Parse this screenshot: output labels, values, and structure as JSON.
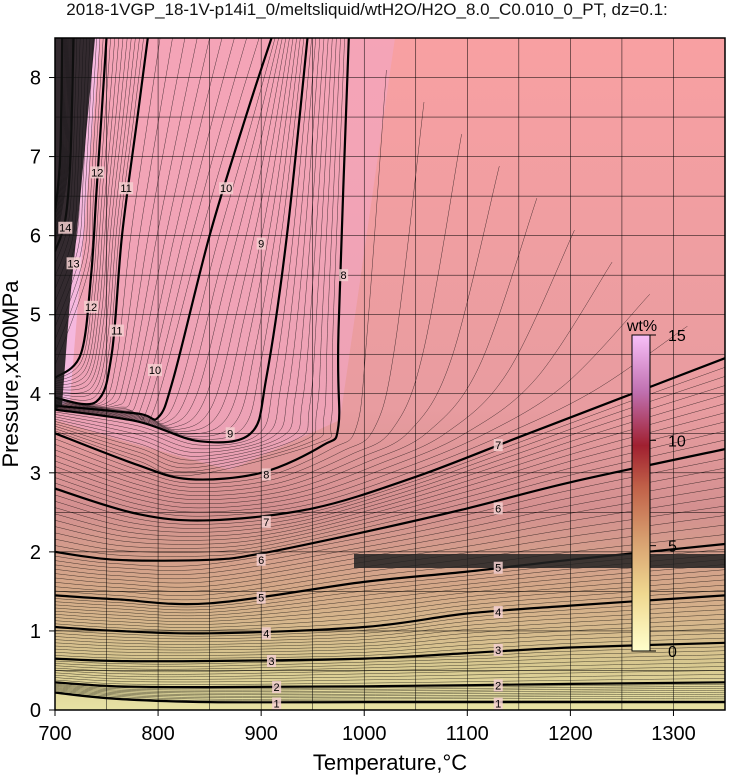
{
  "title": "2018-1VGP_18-1V-p14i1_0/meltsliquid/wtH2O/H2O_8.0_C0.010_0_PT, dz=0.1:",
  "chart_data": {
    "type": "heatmap",
    "xlabel": "Temperature,°C",
    "ylabel": "Pressure,x100MPa",
    "xlim": [
      700,
      1350
    ],
    "ylim": [
      0,
      8.5
    ],
    "xticks": [
      700,
      800,
      900,
      1000,
      1100,
      1200,
      1300
    ],
    "yticks": [
      0,
      1,
      2,
      3,
      4,
      5,
      6,
      7,
      8
    ],
    "grid": true,
    "colorbar": {
      "label": "wt%",
      "range": [
        0,
        15
      ],
      "ticks": [
        0,
        5,
        10,
        15
      ],
      "colors": [
        "#ffffcc",
        "#f0d890",
        "#d8a070",
        "#c06048",
        "#a02030",
        "#c070b0",
        "#f8c0f8"
      ]
    },
    "contours": [
      {
        "level": 1,
        "points": [
          [
            700,
            0.22
          ],
          [
            760,
            0.14
          ],
          [
            850,
            0.1
          ],
          [
            1000,
            0.1
          ],
          [
            1200,
            0.1
          ],
          [
            1350,
            0.1
          ]
        ]
      },
      {
        "level": 2,
        "points": [
          [
            700,
            0.35
          ],
          [
            760,
            0.3
          ],
          [
            850,
            0.29
          ],
          [
            1000,
            0.3
          ],
          [
            1200,
            0.33
          ],
          [
            1350,
            0.35
          ]
        ]
      },
      {
        "level": 3,
        "points": [
          [
            700,
            0.65
          ],
          [
            760,
            0.62
          ],
          [
            850,
            0.62
          ],
          [
            1000,
            0.65
          ],
          [
            1100,
            0.72
          ],
          [
            1200,
            0.79
          ],
          [
            1350,
            0.85
          ]
        ]
      },
      {
        "level": 4,
        "points": [
          [
            700,
            1.05
          ],
          [
            760,
            1.0
          ],
          [
            850,
            0.97
          ],
          [
            1000,
            1.05
          ],
          [
            1100,
            1.22
          ],
          [
            1200,
            1.32
          ],
          [
            1350,
            1.45
          ]
        ]
      },
      {
        "level": 5,
        "points": [
          [
            700,
            1.45
          ],
          [
            760,
            1.4
          ],
          [
            850,
            1.35
          ],
          [
            1000,
            1.62
          ],
          [
            1100,
            1.75
          ],
          [
            1200,
            1.9
          ],
          [
            1350,
            2.1
          ]
        ]
      },
      {
        "level": 6,
        "points": [
          [
            700,
            2.0
          ],
          [
            760,
            1.9
          ],
          [
            850,
            1.9
          ],
          [
            900,
            1.98
          ],
          [
            1000,
            2.25
          ],
          [
            1100,
            2.55
          ],
          [
            1200,
            2.88
          ],
          [
            1350,
            3.3
          ]
        ]
      },
      {
        "level": 7,
        "points": [
          [
            700,
            2.8
          ],
          [
            780,
            2.48
          ],
          [
            850,
            2.4
          ],
          [
            950,
            2.55
          ],
          [
            1050,
            2.95
          ],
          [
            1150,
            3.45
          ],
          [
            1250,
            3.95
          ],
          [
            1350,
            4.45
          ]
        ]
      },
      {
        "level": 8,
        "points": [
          [
            700,
            3.5
          ],
          [
            780,
            3.1
          ],
          [
            830,
            2.92
          ],
          [
            900,
            3.0
          ],
          [
            960,
            3.35
          ],
          [
            975,
            3.6
          ],
          [
            975,
            4.8
          ],
          [
            985,
            8.5
          ]
        ]
      },
      {
        "level": 9,
        "points": [
          [
            700,
            3.8
          ],
          [
            780,
            3.65
          ],
          [
            840,
            3.4
          ],
          [
            890,
            3.5
          ],
          [
            905,
            4.2
          ],
          [
            925,
            6.0
          ],
          [
            945,
            8.5
          ]
        ]
      },
      {
        "level": 10,
        "points": [
          [
            700,
            3.85
          ],
          [
            780,
            3.75
          ],
          [
            800,
            3.7
          ],
          [
            815,
            4.2
          ],
          [
            850,
            6.0
          ],
          [
            885,
            7.5
          ],
          [
            910,
            8.5
          ]
        ]
      },
      {
        "level": 11,
        "points": [
          [
            700,
            3.95
          ],
          [
            740,
            3.9
          ],
          [
            755,
            4.5
          ],
          [
            765,
            6.0
          ],
          [
            780,
            7.5
          ],
          [
            790,
            8.5
          ]
        ]
      },
      {
        "level": 12,
        "points": [
          [
            700,
            4.2
          ],
          [
            725,
            4.5
          ],
          [
            735,
            5.5
          ],
          [
            740,
            6.5
          ],
          [
            745,
            7.5
          ],
          [
            750,
            8.5
          ]
        ]
      },
      {
        "level": 13,
        "points": [
          [
            700,
            5.8
          ],
          [
            710,
            6.2
          ],
          [
            715,
            7.0
          ],
          [
            718,
            8.5
          ]
        ]
      },
      {
        "level": 14,
        "points": [
          [
            700,
            6.3
          ],
          [
            705,
            7.0
          ],
          [
            707,
            8.5
          ]
        ]
      }
    ],
    "annotations": [
      {
        "text": "1",
        "x": 915,
        "y": 0.08
      },
      {
        "text": "1",
        "x": 1130,
        "y": 0.08
      },
      {
        "text": "2",
        "x": 915,
        "y": 0.29
      },
      {
        "text": "2",
        "x": 1130,
        "y": 0.31
      },
      {
        "text": "3",
        "x": 910,
        "y": 0.62
      },
      {
        "text": "3",
        "x": 1130,
        "y": 0.76
      },
      {
        "text": "4",
        "x": 905,
        "y": 0.97
      },
      {
        "text": "4",
        "x": 1130,
        "y": 1.24
      },
      {
        "text": "5",
        "x": 900,
        "y": 1.42
      },
      {
        "text": "5",
        "x": 1130,
        "y": 1.8
      },
      {
        "text": "6",
        "x": 900,
        "y": 1.9
      },
      {
        "text": "6",
        "x": 1130,
        "y": 2.55
      },
      {
        "text": "7",
        "x": 905,
        "y": 2.38
      },
      {
        "text": "7",
        "x": 1130,
        "y": 3.35
      },
      {
        "text": "8",
        "x": 905,
        "y": 2.98
      },
      {
        "text": "8",
        "x": 980,
        "y": 5.5
      },
      {
        "text": "9",
        "x": 870,
        "y": 3.5
      },
      {
        "text": "9",
        "x": 900,
        "y": 5.9
      },
      {
        "text": "10",
        "x": 797,
        "y": 4.3
      },
      {
        "text": "10",
        "x": 866,
        "y": 6.6
      },
      {
        "text": "11",
        "x": 760,
        "y": 4.8
      },
      {
        "text": "11",
        "x": 769,
        "y": 6.6
      },
      {
        "text": "12",
        "x": 735,
        "y": 5.1
      },
      {
        "text": "12",
        "x": 741,
        "y": 6.8
      },
      {
        "text": "13",
        "x": 718,
        "y": 5.65
      },
      {
        "text": "14",
        "x": 710,
        "y": 6.1
      }
    ]
  }
}
